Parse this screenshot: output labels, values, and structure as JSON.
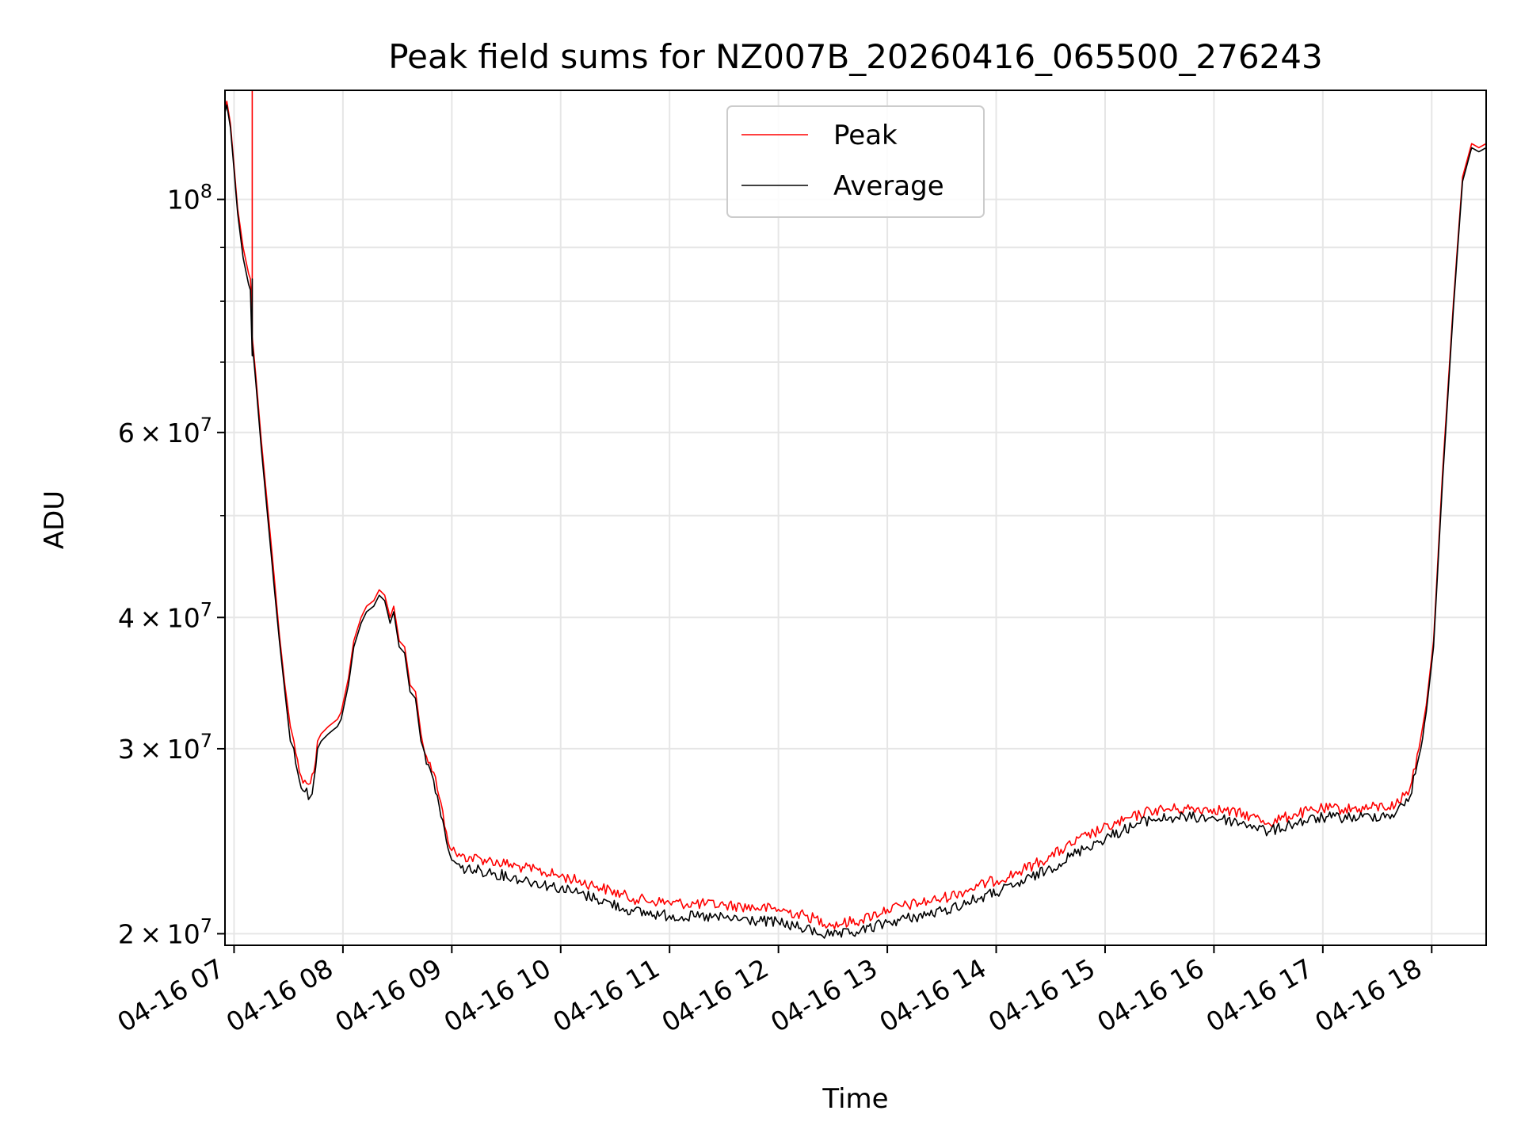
{
  "chart_data": {
    "type": "line",
    "title": "Peak field sums for NZ007B_20260416_065500_276243",
    "xlabel": "Time",
    "ylabel": "ADU",
    "yscale": "log",
    "ylim": [
      19500000,
      127000000
    ],
    "xlim": [
      "2026-04-16 06:55",
      "2026-04-16 18:30"
    ],
    "grid": true,
    "legend": {
      "placement": "upper center",
      "entries": [
        "Peak",
        "Average"
      ]
    },
    "x_ticks": [
      {
        "t": "2026-04-16 07:00",
        "label": "04-16 07"
      },
      {
        "t": "2026-04-16 08:00",
        "label": "04-16 08"
      },
      {
        "t": "2026-04-16 09:00",
        "label": "04-16 09"
      },
      {
        "t": "2026-04-16 10:00",
        "label": "04-16 10"
      },
      {
        "t": "2026-04-16 11:00",
        "label": "04-16 11"
      },
      {
        "t": "2026-04-16 12:00",
        "label": "04-16 12"
      },
      {
        "t": "2026-04-16 13:00",
        "label": "04-16 13"
      },
      {
        "t": "2026-04-16 14:00",
        "label": "04-16 14"
      },
      {
        "t": "2026-04-16 15:00",
        "label": "04-16 15"
      },
      {
        "t": "2026-04-16 16:00",
        "label": "04-16 16"
      },
      {
        "t": "2026-04-16 17:00",
        "label": "04-16 17"
      },
      {
        "t": "2026-04-16 18:00",
        "label": "04-16 18"
      }
    ],
    "y_major_ticks": [
      {
        "value": 20000000,
        "mant": "2 × 10",
        "exp": "7"
      },
      {
        "value": 30000000,
        "mant": "3 × 10",
        "exp": "7"
      },
      {
        "value": 40000000,
        "mant": "4 × 10",
        "exp": "7"
      },
      {
        "value": 60000000,
        "mant": "6 × 10",
        "exp": "7"
      },
      {
        "value": 100000000,
        "mant": "10",
        "exp": "8"
      }
    ],
    "y_minor_ticks": [
      50000000,
      70000000,
      80000000,
      90000000
    ],
    "series": [
      {
        "name": "Peak",
        "color": "#ff0000",
        "points": [
          [
            "2026-04-16 06:55",
            122000000
          ],
          [
            "2026-04-16 06:56",
            124000000
          ],
          [
            "2026-04-16 06:58",
            118000000
          ],
          [
            "2026-04-16 07:02",
            98000000
          ],
          [
            "2026-04-16 07:05",
            90000000
          ],
          [
            "2026-04-16 07:08",
            85000000
          ],
          [
            "2026-04-16 07:09",
            84000000
          ],
          [
            "2026-04-16 07:10",
            78000000
          ],
          [
            "2026-04-16 07:10",
            127000000
          ],
          [
            "2026-04-16 07:10",
            74000000
          ],
          [
            "2026-04-16 07:12",
            68000000
          ],
          [
            "2026-04-16 07:15",
            59000000
          ],
          [
            "2026-04-16 07:18",
            52000000
          ],
          [
            "2026-04-16 07:22",
            44000000
          ],
          [
            "2026-04-16 07:25",
            38500000
          ],
          [
            "2026-04-16 07:28",
            34500000
          ],
          [
            "2026-04-16 07:31",
            31500000
          ],
          [
            "2026-04-16 07:33",
            30500000
          ],
          [
            "2026-04-16 07:36",
            28500000
          ],
          [
            "2026-04-16 07:39",
            28000000
          ],
          [
            "2026-04-16 07:42",
            27800000
          ],
          [
            "2026-04-16 07:44",
            28500000
          ],
          [
            "2026-04-16 07:46",
            30500000
          ],
          [
            "2026-04-16 07:48",
            31000000
          ],
          [
            "2026-04-16 07:52",
            31500000
          ],
          [
            "2026-04-16 07:57",
            32000000
          ],
          [
            "2026-04-16 07:59",
            32500000
          ],
          [
            "2026-04-16 08:03",
            35000000
          ],
          [
            "2026-04-16 08:06",
            38000000
          ],
          [
            "2026-04-16 08:10",
            40000000
          ],
          [
            "2026-04-16 08:13",
            41000000
          ],
          [
            "2026-04-16 08:17",
            41500000
          ],
          [
            "2026-04-16 08:20",
            42500000
          ],
          [
            "2026-04-16 08:23",
            42000000
          ],
          [
            "2026-04-16 08:26",
            40000000
          ],
          [
            "2026-04-16 08:28",
            41000000
          ],
          [
            "2026-04-16 08:31",
            38000000
          ],
          [
            "2026-04-16 08:34",
            37500000
          ],
          [
            "2026-04-16 08:37",
            34500000
          ],
          [
            "2026-04-16 08:40",
            34000000
          ],
          [
            "2026-04-16 08:43",
            31000000
          ],
          [
            "2026-04-16 08:46",
            29500000
          ],
          [
            "2026-04-16 08:50",
            28500000
          ],
          [
            "2026-04-16 08:53",
            27000000
          ],
          [
            "2026-04-16 08:57",
            25000000
          ],
          [
            "2026-04-16 09:00",
            24000000
          ],
          [
            "2026-04-16 09:05",
            23700000
          ],
          [
            "2026-04-16 09:20",
            23500000
          ],
          [
            "2026-04-16 09:40",
            23100000
          ],
          [
            "2026-04-16 10:00",
            22700000
          ],
          [
            "2026-04-16 10:20",
            22200000
          ],
          [
            "2026-04-16 10:40",
            21600000
          ],
          [
            "2026-04-16 11:00",
            21400000
          ],
          [
            "2026-04-16 11:30",
            21300000
          ],
          [
            "2026-04-16 12:00",
            21100000
          ],
          [
            "2026-04-16 12:15",
            20800000
          ],
          [
            "2026-04-16 12:30",
            20400000
          ],
          [
            "2026-04-16 12:45",
            20600000
          ],
          [
            "2026-04-16 13:00",
            21100000
          ],
          [
            "2026-04-16 13:30",
            21600000
          ],
          [
            "2026-04-16 13:50",
            22200000
          ],
          [
            "2026-04-16 14:10",
            22800000
          ],
          [
            "2026-04-16 14:30",
            23700000
          ],
          [
            "2026-04-16 14:50",
            24800000
          ],
          [
            "2026-04-16 15:10",
            25600000
          ],
          [
            "2026-04-16 15:25",
            26200000
          ],
          [
            "2026-04-16 15:40",
            26300000
          ],
          [
            "2026-04-16 16:00",
            26300000
          ],
          [
            "2026-04-16 16:20",
            25900000
          ],
          [
            "2026-04-16 16:30",
            25500000
          ],
          [
            "2026-04-16 16:45",
            26000000
          ],
          [
            "2026-04-16 17:00",
            26300000
          ],
          [
            "2026-04-16 17:20",
            26300000
          ],
          [
            "2026-04-16 17:40",
            26500000
          ],
          [
            "2026-04-16 17:48",
            27500000
          ],
          [
            "2026-04-16 17:53",
            30000000
          ],
          [
            "2026-04-16 17:57",
            33000000
          ],
          [
            "2026-04-16 18:01",
            38000000
          ],
          [
            "2026-04-16 18:06",
            55000000
          ],
          [
            "2026-04-16 18:12",
            80000000
          ],
          [
            "2026-04-16 18:17",
            105000000
          ],
          [
            "2026-04-16 18:22",
            113000000
          ],
          [
            "2026-04-16 18:26",
            112000000
          ],
          [
            "2026-04-16 18:30",
            113000000
          ]
        ]
      },
      {
        "name": "Average",
        "color": "#000000",
        "points": [
          [
            "2026-04-16 06:55",
            121000000
          ],
          [
            "2026-04-16 06:56",
            123000000
          ],
          [
            "2026-04-16 06:58",
            117000000
          ],
          [
            "2026-04-16 07:02",
            97000000
          ],
          [
            "2026-04-16 07:05",
            88000000
          ],
          [
            "2026-04-16 07:08",
            83000000
          ],
          [
            "2026-04-16 07:09",
            82000000
          ],
          [
            "2026-04-16 07:10",
            71000000
          ],
          [
            "2026-04-16 07:10",
            84000000
          ],
          [
            "2026-04-16 07:10",
            73000000
          ],
          [
            "2026-04-16 07:12",
            67000000
          ],
          [
            "2026-04-16 07:15",
            58000000
          ],
          [
            "2026-04-16 07:18",
            51000000
          ],
          [
            "2026-04-16 07:22",
            43000000
          ],
          [
            "2026-04-16 07:25",
            38000000
          ],
          [
            "2026-04-16 07:28",
            34000000
          ],
          [
            "2026-04-16 07:31",
            30500000
          ],
          [
            "2026-04-16 07:33",
            30000000
          ],
          [
            "2026-04-16 07:36",
            28000000
          ],
          [
            "2026-04-16 07:39",
            27300000
          ],
          [
            "2026-04-16 07:42",
            27000000
          ],
          [
            "2026-04-16 07:44",
            28000000
          ],
          [
            "2026-04-16 07:46",
            30000000
          ],
          [
            "2026-04-16 07:48",
            30500000
          ],
          [
            "2026-04-16 07:52",
            31000000
          ],
          [
            "2026-04-16 07:57",
            31500000
          ],
          [
            "2026-04-16 07:59",
            32000000
          ],
          [
            "2026-04-16 08:03",
            34500000
          ],
          [
            "2026-04-16 08:06",
            37500000
          ],
          [
            "2026-04-16 08:10",
            39500000
          ],
          [
            "2026-04-16 08:13",
            40500000
          ],
          [
            "2026-04-16 08:17",
            41000000
          ],
          [
            "2026-04-16 08:20",
            42000000
          ],
          [
            "2026-04-16 08:23",
            41500000
          ],
          [
            "2026-04-16 08:26",
            39500000
          ],
          [
            "2026-04-16 08:28",
            40500000
          ],
          [
            "2026-04-16 08:31",
            37500000
          ],
          [
            "2026-04-16 08:34",
            37000000
          ],
          [
            "2026-04-16 08:37",
            34000000
          ],
          [
            "2026-04-16 08:40",
            33500000
          ],
          [
            "2026-04-16 08:43",
            30500000
          ],
          [
            "2026-04-16 08:46",
            29000000
          ],
          [
            "2026-04-16 08:50",
            28000000
          ],
          [
            "2026-04-16 08:53",
            26500000
          ],
          [
            "2026-04-16 08:57",
            24500000
          ],
          [
            "2026-04-16 09:00",
            23500000
          ],
          [
            "2026-04-16 09:05",
            23100000
          ],
          [
            "2026-04-16 09:20",
            22900000
          ],
          [
            "2026-04-16 09:40",
            22500000
          ],
          [
            "2026-04-16 10:00",
            22100000
          ],
          [
            "2026-04-16 10:20",
            21600000
          ],
          [
            "2026-04-16 10:40",
            21000000
          ],
          [
            "2026-04-16 11:00",
            20800000
          ],
          [
            "2026-04-16 11:30",
            20700000
          ],
          [
            "2026-04-16 12:00",
            20500000
          ],
          [
            "2026-04-16 12:15",
            20200000
          ],
          [
            "2026-04-16 12:30",
            19900000
          ],
          [
            "2026-04-16 12:45",
            20100000
          ],
          [
            "2026-04-16 13:00",
            20500000
          ],
          [
            "2026-04-16 13:30",
            21000000
          ],
          [
            "2026-04-16 13:50",
            21600000
          ],
          [
            "2026-04-16 14:10",
            22200000
          ],
          [
            "2026-04-16 14:30",
            23100000
          ],
          [
            "2026-04-16 14:50",
            24200000
          ],
          [
            "2026-04-16 15:10",
            25100000
          ],
          [
            "2026-04-16 15:25",
            25700000
          ],
          [
            "2026-04-16 15:40",
            25800000
          ],
          [
            "2026-04-16 16:00",
            25800000
          ],
          [
            "2026-04-16 16:20",
            25400000
          ],
          [
            "2026-04-16 16:30",
            25000000
          ],
          [
            "2026-04-16 16:45",
            25500000
          ],
          [
            "2026-04-16 17:00",
            25800000
          ],
          [
            "2026-04-16 17:20",
            25800000
          ],
          [
            "2026-04-16 17:40",
            26000000
          ],
          [
            "2026-04-16 17:48",
            27000000
          ],
          [
            "2026-04-16 17:53",
            29500000
          ],
          [
            "2026-04-16 17:57",
            32500000
          ],
          [
            "2026-04-16 18:01",
            37500000
          ],
          [
            "2026-04-16 18:06",
            54000000
          ],
          [
            "2026-04-16 18:12",
            79000000
          ],
          [
            "2026-04-16 18:17",
            104000000
          ],
          [
            "2026-04-16 18:22",
            112000000
          ],
          [
            "2026-04-16 18:26",
            111000000
          ],
          [
            "2026-04-16 18:30",
            112000000
          ]
        ]
      }
    ]
  }
}
